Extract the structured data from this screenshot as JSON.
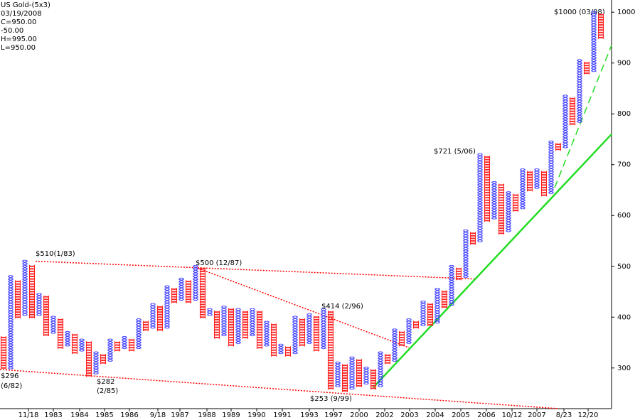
{
  "chart_data": {
    "type": "point-and-figure",
    "title": "US Gold-(5x3)",
    "header": [
      "03/19/2008",
      "C=950.00",
      "-50.00",
      "H=995.00",
      "L=950.00"
    ],
    "header_colors": [
      "#000000",
      "#000000",
      "#ff0000",
      "#000000",
      "#000000"
    ],
    "box_size": 5,
    "x_color": "#3333ff",
    "o_color": "#ff2222",
    "columns": {
      "kind": [
        "O",
        "X",
        "O",
        "X",
        "O",
        "X",
        "O",
        "X",
        "O",
        "X",
        "O",
        "X",
        "O",
        "X",
        "O",
        "X",
        "O",
        "X",
        "O",
        "X",
        "O",
        "X",
        "O",
        "X",
        "O",
        "X",
        "O",
        "X",
        "O",
        "X",
        "O",
        "X",
        "O",
        "X",
        "O",
        "X",
        "O",
        "X",
        "O",
        "X",
        "O",
        "X",
        "O",
        "X",
        "O",
        "X",
        "O",
        "X",
        "O",
        "X",
        "O",
        "X",
        "O",
        "X",
        "O",
        "X",
        "O",
        "X",
        "O",
        "X",
        "O",
        "X",
        "O",
        "X",
        "O",
        "X",
        "O",
        "X",
        "O",
        "X",
        "O",
        "X",
        "O",
        "X",
        "O",
        "X",
        "O",
        "X",
        "O",
        "X",
        "O",
        "X",
        "O",
        "X",
        "O"
      ],
      "low": [
        300,
        300,
        400,
        405,
        400,
        405,
        365,
        370,
        340,
        345,
        330,
        335,
        285,
        290,
        310,
        315,
        335,
        340,
        335,
        340,
        375,
        380,
        375,
        380,
        430,
        435,
        430,
        435,
        400,
        405,
        360,
        365,
        345,
        350,
        360,
        365,
        340,
        345,
        325,
        330,
        325,
        330,
        345,
        350,
        335,
        340,
        260,
        265,
        255,
        260,
        265,
        270,
        260,
        265,
        310,
        315,
        345,
        350,
        380,
        385,
        385,
        390,
        420,
        425,
        475,
        480,
        545,
        550,
        590,
        595,
        565,
        570,
        610,
        615,
        650,
        655,
        640,
        645,
        730,
        735,
        780,
        785,
        880,
        885,
        950
      ],
      "high": [
        360,
        480,
        470,
        510,
        500,
        445,
        440,
        400,
        395,
        370,
        365,
        355,
        350,
        330,
        325,
        355,
        350,
        360,
        355,
        395,
        390,
        425,
        420,
        460,
        455,
        475,
        470,
        500,
        495,
        415,
        410,
        420,
        415,
        415,
        410,
        415,
        410,
        390,
        385,
        345,
        340,
        400,
        395,
        405,
        400,
        415,
        410,
        310,
        305,
        320,
        315,
        300,
        295,
        330,
        325,
        375,
        370,
        395,
        390,
        430,
        425,
        455,
        450,
        500,
        495,
        570,
        565,
        720,
        715,
        665,
        660,
        645,
        640,
        690,
        685,
        690,
        685,
        745,
        740,
        835,
        830,
        905,
        900,
        1000,
        995
      ]
    },
    "xlim": [
      0,
      86
    ],
    "xticks": [
      {
        "value": 4,
        "label": "11/18"
      },
      {
        "value": 7.5,
        "label": "1983"
      },
      {
        "value": 11.2,
        "label": "1984"
      },
      {
        "value": 14.7,
        "label": "1985"
      },
      {
        "value": 18.2,
        "label": "1986"
      },
      {
        "value": 22.2,
        "label": "9/18"
      },
      {
        "value": 25.3,
        "label": "1987"
      },
      {
        "value": 29.1,
        "label": "1988"
      },
      {
        "value": 32.5,
        "label": "1989"
      },
      {
        "value": 36.1,
        "label": "1990"
      },
      {
        "value": 39.7,
        "label": "1991"
      },
      {
        "value": 43.5,
        "label": "1993"
      },
      {
        "value": 46.9,
        "label": "1997"
      },
      {
        "value": 50.5,
        "label": "2000"
      },
      {
        "value": 54.1,
        "label": "2002"
      },
      {
        "value": 57.6,
        "label": "2003"
      },
      {
        "value": 61.2,
        "label": "2004"
      },
      {
        "value": 64.8,
        "label": "2005"
      },
      {
        "value": 68.4,
        "label": "2006"
      },
      {
        "value": 72,
        "label": "10/12"
      },
      {
        "value": 75.5,
        "label": "2007"
      },
      {
        "value": 79.3,
        "label": "8/23"
      },
      {
        "value": 82.7,
        "label": "12/20"
      }
    ],
    "ylim": [
      220,
      1024
    ],
    "yticks": [
      300,
      400,
      500,
      600,
      700,
      800,
      900,
      1000
    ],
    "trendlines": [
      {
        "color": "#ff0000",
        "dash": "2,2",
        "x": [
          0,
          78.5
        ],
        "y": [
          297,
          220
        ]
      },
      {
        "color": "#ff0000",
        "dash": "2,2",
        "x": [
          5,
          67
        ],
        "y": [
          510,
          475
        ]
      },
      {
        "color": "#ff0000",
        "dash": "2,2",
        "x": [
          27.5,
          57.5
        ],
        "y": [
          498,
          340
        ]
      },
      {
        "color": "#22dd22",
        "dash": "none",
        "x": [
          52.5,
          86
        ],
        "y": [
          262,
          760
        ]
      },
      {
        "color": "#22dd22",
        "dash": "10,6",
        "x": [
          78,
          86
        ],
        "y": [
          655,
          935
        ]
      }
    ],
    "annotations": [
      "$510(1/83)",
      "$500  (12/87)",
      "$414  (2/96)",
      "$721  (5/06)",
      "$1000 (03/08)",
      "$296",
      "(6/82)",
      "$282",
      "(2/85)",
      "$253 (9/99)"
    ]
  }
}
